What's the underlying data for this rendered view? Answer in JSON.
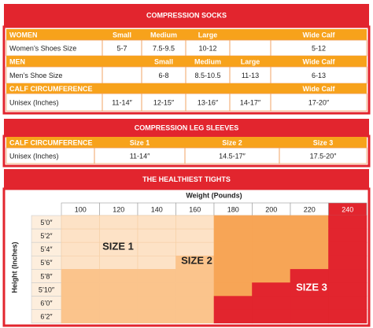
{
  "socks": {
    "title": "COMPRESSION SOCKS",
    "rows": [
      [
        "WOMEN",
        "Small",
        "Medium",
        "Large",
        null,
        "Wide Calf"
      ],
      [
        "Women’s Shoes Size",
        "5-7",
        "7.5-9.5",
        "10-12",
        null,
        "5-12"
      ],
      [
        "MEN",
        null,
        "Small",
        "Medium",
        "Large",
        "Wide Calf"
      ],
      [
        "Men’s Shoe Size",
        null,
        "6-8",
        "8.5-10.5",
        "11-13",
        "6-13"
      ],
      [
        "CALF CIRCUMFERENCE",
        null,
        null,
        null,
        null,
        "Wide Calf"
      ],
      [
        "Unisex (Inches)",
        "11-14″",
        "12-15″",
        "13-16″",
        "14-17″",
        "17-20″"
      ]
    ]
  },
  "sleeves": {
    "title": "COMPRESSION LEG SLEEVES",
    "rows": [
      [
        "CALF CIRCUMFERENCE",
        "Size 1",
        "Size 2",
        "Size 3"
      ],
      [
        "Unisex (Inches)",
        "11-14″",
        "14.5-17″",
        "17.5-20″"
      ]
    ]
  },
  "tights": {
    "title": "THE HEALTHIEST TIGHTS",
    "weight_label": "Weight (Pounds)",
    "height_label": "Height (Inches)",
    "weights": [
      100,
      120,
      140,
      160,
      180,
      200,
      220,
      240
    ],
    "heights": [
      "5’0″",
      "5’2″",
      "5’4″",
      "5’6″",
      "5’8″",
      "5’10″",
      "6’0″",
      "6’2″"
    ],
    "sizes": [
      "SIZE 1",
      "SIZE 2",
      "SIZE 3"
    ]
  }
}
